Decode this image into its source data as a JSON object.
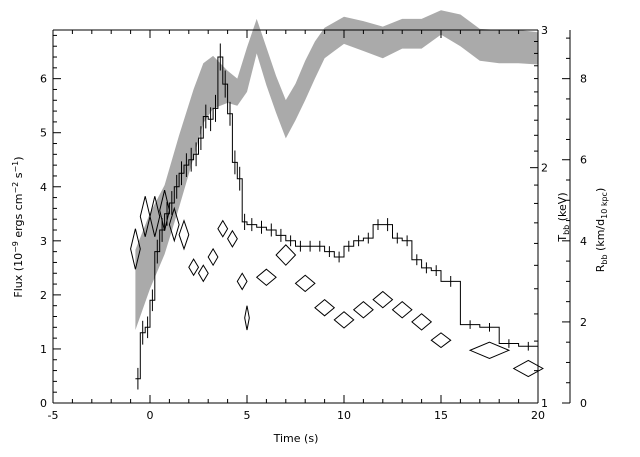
{
  "chart_data": {
    "type": "line",
    "xlabel": "Time (s)",
    "xlim": [
      -5,
      20
    ],
    "x_ticks": [
      -5,
      0,
      5,
      10,
      15,
      20
    ],
    "left_axis": {
      "label_main": "Flux (10",
      "label_exp1": "−9",
      "label_mid": " ergs cm",
      "label_exp2": "−2",
      "label_mid2": " s",
      "label_exp3": "−1",
      "label_end": ")",
      "ylim": [
        0,
        6.9
      ],
      "ticks": [
        0,
        1,
        2,
        3,
        4,
        5,
        6
      ]
    },
    "temp_axis": {
      "label_main": "T",
      "label_sub": "bb",
      "label_end": " (keV)",
      "scale": "log",
      "ylim": [
        1,
        3
      ],
      "ticks": [
        1,
        2,
        3
      ]
    },
    "radius_axis": {
      "label_main": "R",
      "label_sub": "bb",
      "label_mid": " (km/d",
      "label_sub2": "10 kpc",
      "label_end": ")",
      "ylim": [
        0,
        9.2
      ],
      "ticks": [
        0,
        2,
        4,
        6,
        8
      ]
    },
    "flux_series": {
      "edges": [
        -0.75,
        -0.5,
        -0.25,
        0,
        0.25,
        0.5,
        0.75,
        1,
        1.25,
        1.5,
        1.75,
        2,
        2.25,
        2.5,
        2.75,
        3,
        3.25,
        3.5,
        3.75,
        4,
        4.25,
        4.5,
        4.75,
        5,
        5.5,
        6,
        6.5,
        7,
        7.5,
        8,
        8.5,
        9,
        9.5,
        10,
        10.5,
        11,
        11.5,
        12,
        12.5,
        13,
        13.5,
        14,
        14.5,
        15,
        16,
        17,
        18,
        19,
        20
      ],
      "values": [
        0.45,
        1.3,
        1.4,
        1.9,
        2.8,
        3.2,
        3.5,
        3.7,
        4.0,
        4.25,
        4.4,
        4.5,
        4.6,
        4.9,
        5.3,
        5.25,
        5.45,
        6.4,
        5.9,
        5.35,
        4.45,
        4.15,
        3.35,
        3.3,
        3.25,
        3.2,
        3.1,
        3.0,
        2.9,
        2.9,
        2.9,
        2.8,
        2.7,
        2.9,
        3.0,
        3.05,
        3.3,
        3.3,
        3.05,
        3.0,
        2.65,
        2.5,
        2.45,
        2.25,
        1.45,
        1.4,
        1.1,
        1.05
      ],
      "errors": [
        0.2,
        0.22,
        0.2,
        0.2,
        0.22,
        0.22,
        0.22,
        0.22,
        0.22,
        0.22,
        0.22,
        0.22,
        0.22,
        0.22,
        0.22,
        0.22,
        0.25,
        0.25,
        0.25,
        0.22,
        0.22,
        0.22,
        0.15,
        0.12,
        0.12,
        0.12,
        0.12,
        0.1,
        0.1,
        0.1,
        0.1,
        0.1,
        0.1,
        0.1,
        0.1,
        0.1,
        0.1,
        0.12,
        0.1,
        0.1,
        0.1,
        0.1,
        0.1,
        0.1,
        0.08,
        0.08,
        0.08,
        0.08
      ]
    },
    "temperature_band": {
      "x": [
        -0.75,
        0,
        0.75,
        1.5,
        2.25,
        2.75,
        3.25,
        4,
        4.5,
        5,
        5.5,
        6,
        6.5,
        7,
        7.5,
        8,
        8.5,
        9,
        9.5,
        10,
        11,
        12,
        13,
        14,
        15,
        16,
        17,
        18,
        19,
        20
      ],
      "lower": [
        1.24,
        1.4,
        1.55,
        1.78,
        2.06,
        2.28,
        2.38,
        2.42,
        2.4,
        2.5,
        2.8,
        2.55,
        2.35,
        2.18,
        2.3,
        2.44,
        2.6,
        2.76,
        2.82,
        2.88,
        2.82,
        2.76,
        2.84,
        2.84,
        2.96,
        2.86,
        2.74,
        2.72,
        2.72,
        2.71
      ],
      "upper": [
        1.57,
        1.75,
        1.9,
        2.2,
        2.52,
        2.72,
        2.78,
        2.66,
        2.6,
        2.85,
        3.1,
        2.85,
        2.62,
        2.44,
        2.56,
        2.74,
        2.9,
        3.02,
        3.07,
        3.12,
        3.08,
        3.03,
        3.1,
        3.1,
        3.18,
        3.14,
        3.01,
        3.0,
        3.0,
        2.98
      ]
    },
    "radius_points": [
      {
        "t": -0.75,
        "r": 3.8,
        "hw": 0.25,
        "hh": 0.5
      },
      {
        "t": -0.25,
        "r": 4.6,
        "hw": 0.25,
        "hh": 0.5
      },
      {
        "t": 0.25,
        "r": 4.6,
        "hw": 0.25,
        "hh": 0.5
      },
      {
        "t": 0.75,
        "r": 4.75,
        "hw": 0.25,
        "hh": 0.5
      },
      {
        "t": 1.25,
        "r": 4.4,
        "hw": 0.25,
        "hh": 0.4
      },
      {
        "t": 1.75,
        "r": 4.15,
        "hw": 0.25,
        "hh": 0.35
      },
      {
        "t": 2.25,
        "r": 3.35,
        "hw": 0.25,
        "hh": 0.2
      },
      {
        "t": 2.75,
        "r": 3.2,
        "hw": 0.25,
        "hh": 0.2
      },
      {
        "t": 3.25,
        "r": 3.6,
        "hw": 0.25,
        "hh": 0.2
      },
      {
        "t": 3.75,
        "r": 4.3,
        "hw": 0.25,
        "hh": 0.2
      },
      {
        "t": 4.25,
        "r": 4.05,
        "hw": 0.25,
        "hh": 0.2
      },
      {
        "t": 4.75,
        "r": 3.0,
        "hw": 0.25,
        "hh": 0.2
      },
      {
        "t": 5.0,
        "r": 2.1,
        "hw": 0.12,
        "hh": 0.3
      },
      {
        "t": 6.0,
        "r": 3.1,
        "hw": 0.5,
        "hh": 0.2
      },
      {
        "t": 7.0,
        "r": 3.65,
        "hw": 0.5,
        "hh": 0.25
      },
      {
        "t": 8.0,
        "r": 2.95,
        "hw": 0.5,
        "hh": 0.2
      },
      {
        "t": 9.0,
        "r": 2.35,
        "hw": 0.5,
        "hh": 0.2
      },
      {
        "t": 10.0,
        "r": 2.05,
        "hw": 0.5,
        "hh": 0.2
      },
      {
        "t": 11.0,
        "r": 2.3,
        "hw": 0.5,
        "hh": 0.2
      },
      {
        "t": 12.0,
        "r": 2.55,
        "hw": 0.5,
        "hh": 0.2
      },
      {
        "t": 13.0,
        "r": 2.3,
        "hw": 0.5,
        "hh": 0.2
      },
      {
        "t": 14.0,
        "r": 2.0,
        "hw": 0.5,
        "hh": 0.2
      },
      {
        "t": 15.0,
        "r": 1.55,
        "hw": 0.5,
        "hh": 0.18
      },
      {
        "t": 17.5,
        "r": 1.3,
        "hw": 1.0,
        "hh": 0.2
      },
      {
        "t": 19.5,
        "r": 0.85,
        "hw": 0.75,
        "hh": 0.2
      }
    ],
    "grid": false,
    "legend": "none",
    "colors": {
      "flux": "#000000",
      "temperature_band": "#aaaaaa",
      "radius": "#000000",
      "axes": "#000000"
    }
  }
}
